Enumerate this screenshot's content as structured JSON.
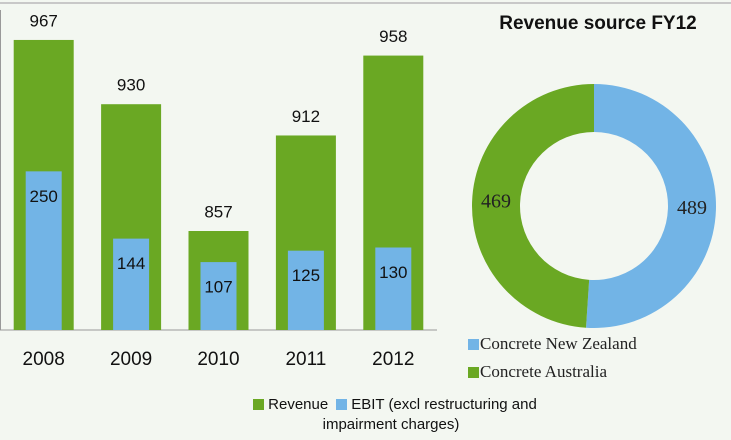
{
  "chart_data": [
    {
      "type": "bar",
      "categories": [
        "2008",
        "2009",
        "2010",
        "2011",
        "2012"
      ],
      "series": [
        {
          "name": "Revenue",
          "color": "#6aa823",
          "values": [
            967,
            930,
            857,
            912,
            958
          ]
        },
        {
          "name": "EBIT (excl restructuring and impairment charges)",
          "color": "#72b4e6",
          "values": [
            250,
            144,
            107,
            125,
            130
          ],
          "axis": "y2"
        }
      ],
      "ylim": [
        800,
        990
      ],
      "y2lim": [
        0,
        520
      ]
    },
    {
      "type": "donut",
      "title": "Revenue source FY12",
      "categories": [
        "Concrete New Zealand",
        "Concrete Australia"
      ],
      "values": [
        489,
        469
      ],
      "colors": [
        "#72b4e6",
        "#6aa823"
      ]
    }
  ]
}
